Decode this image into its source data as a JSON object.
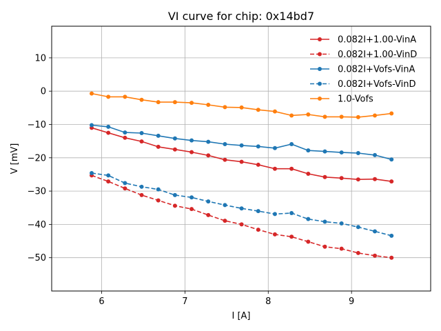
{
  "chart_data": {
    "type": "line",
    "title": "VI curve for chip: 0x14bd7",
    "xlabel": "I [A]",
    "ylabel": "V [mV]",
    "xlim": [
      5.4,
      9.95
    ],
    "ylim": [
      -60,
      19.5
    ],
    "xticks": [
      6,
      7,
      8,
      9
    ],
    "yticks": [
      -50,
      -40,
      -30,
      -20,
      -10,
      0,
      10
    ],
    "grid": true,
    "legend_position": "top-right",
    "x": [
      5.88,
      6.08,
      6.28,
      6.48,
      6.68,
      6.88,
      7.08,
      7.28,
      7.48,
      7.68,
      7.88,
      8.08,
      8.28,
      8.48,
      8.68,
      8.88,
      9.08,
      9.28,
      9.48
    ],
    "series": [
      {
        "name": "0.082I+1.00-VinA",
        "color": "#d62728",
        "dashed": false,
        "values": [
          -11.0,
          -12.5,
          -14.0,
          -15.1,
          -16.7,
          -17.5,
          -18.3,
          -19.3,
          -20.6,
          -21.2,
          -22.1,
          -23.3,
          -23.3,
          -24.8,
          -25.8,
          -26.1,
          -26.5,
          -26.4,
          -27.1
        ]
      },
      {
        "name": "0.082I+1.00-VinD",
        "color": "#d62728",
        "dashed": true,
        "values": [
          -25.3,
          -27.1,
          -29.2,
          -31.2,
          -32.8,
          -34.4,
          -35.4,
          -37.2,
          -38.9,
          -40.0,
          -41.6,
          -43.0,
          -43.7,
          -45.2,
          -46.7,
          -47.3,
          -48.6,
          -49.4,
          -50.0
        ]
      },
      {
        "name": "0.082I+Vofs-VinA",
        "color": "#1f77b4",
        "dashed": false,
        "values": [
          -10.2,
          -10.7,
          -12.4,
          -12.6,
          -13.4,
          -14.2,
          -14.8,
          -15.2,
          -15.9,
          -16.3,
          -16.6,
          -17.1,
          -15.9,
          -17.8,
          -18.1,
          -18.4,
          -18.6,
          -19.2,
          -20.5
        ]
      },
      {
        "name": "0.082I+Vofs-VinD",
        "color": "#1f77b4",
        "dashed": true,
        "values": [
          -24.6,
          -25.3,
          -27.6,
          -28.7,
          -29.5,
          -31.2,
          -31.9,
          -33.1,
          -34.2,
          -35.2,
          -36.0,
          -36.9,
          -36.6,
          -38.4,
          -39.2,
          -39.7,
          -40.8,
          -42.1,
          -43.4
        ]
      },
      {
        "name": "1.0-Vofs",
        "color": "#ff7f0e",
        "dashed": false,
        "values": [
          -0.7,
          -1.7,
          -1.7,
          -2.6,
          -3.3,
          -3.3,
          -3.5,
          -4.1,
          -4.8,
          -4.9,
          -5.6,
          -6.1,
          -7.3,
          -7.0,
          -7.7,
          -7.7,
          -7.8,
          -7.3,
          -6.7
        ]
      }
    ]
  }
}
